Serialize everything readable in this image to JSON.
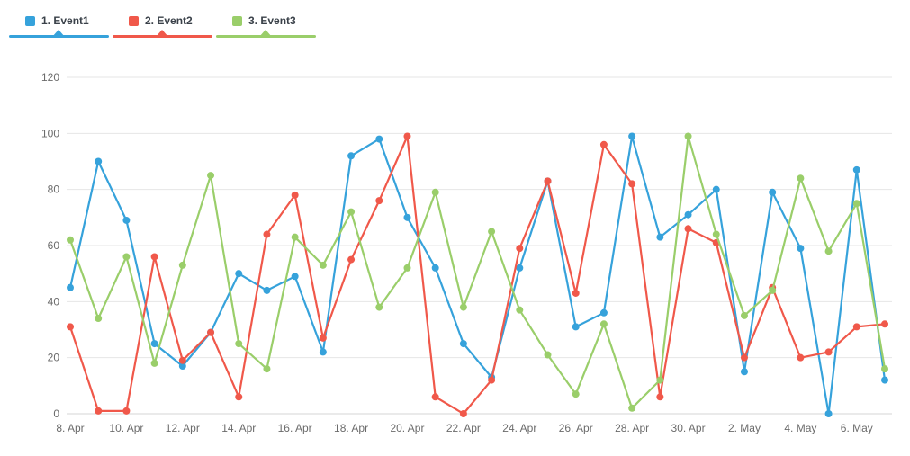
{
  "legend": {
    "items": [
      {
        "label": "1. Event1",
        "color": "#36a2db"
      },
      {
        "label": "2. Event2",
        "color": "#f0584a"
      },
      {
        "label": "3. Event3",
        "color": "#9ace6a"
      }
    ]
  },
  "chart_data": {
    "type": "line",
    "title": "",
    "xlabel": "",
    "ylabel": "",
    "x": [
      "8. Apr",
      "9. Apr",
      "10. Apr",
      "11. Apr",
      "12. Apr",
      "13. Apr",
      "14. Apr",
      "15. Apr",
      "16. Apr",
      "17. Apr",
      "18. Apr",
      "19. Apr",
      "20. Apr",
      "21. Apr",
      "22. Apr",
      "23. Apr",
      "24. Apr",
      "25. Apr",
      "26. Apr",
      "27. Apr",
      "28. Apr",
      "29. Apr",
      "30. Apr",
      "1. May",
      "2. May",
      "3. May",
      "4. May",
      "5. May",
      "6. May",
      "7. May"
    ],
    "x_tick_every": 2,
    "x_tick_labels": [
      "8. Apr",
      "10. Apr",
      "12. Apr",
      "14. Apr",
      "16. Apr",
      "18. Apr",
      "20. Apr",
      "22. Apr",
      "24. Apr",
      "26. Apr",
      "28. Apr",
      "30. Apr",
      "2. May",
      "4. May",
      "6. May"
    ],
    "y_tick_labels": [
      "0",
      "20",
      "40",
      "60",
      "80",
      "100",
      "120"
    ],
    "ylim": [
      0,
      120
    ],
    "ytick_step": 20,
    "grid": true,
    "legend_position": "top-left",
    "series": [
      {
        "name": "Event1",
        "color": "#36a2db",
        "values": [
          45,
          90,
          69,
          25,
          17,
          29,
          50,
          44,
          49,
          22,
          92,
          98,
          70,
          52,
          25,
          13,
          52,
          83,
          31,
          36,
          99,
          63,
          71,
          80,
          15,
          79,
          59,
          0,
          87,
          12
        ]
      },
      {
        "name": "Event2",
        "color": "#f0584a",
        "values": [
          31,
          1,
          1,
          56,
          19,
          29,
          6,
          64,
          78,
          27,
          55,
          76,
          99,
          6,
          0,
          12,
          59,
          83,
          43,
          96,
          82,
          6,
          66,
          61,
          20,
          45,
          20,
          22,
          31,
          32
        ]
      },
      {
        "name": "Event3",
        "color": "#9ace6a",
        "values": [
          62,
          34,
          56,
          18,
          53,
          85,
          25,
          16,
          63,
          53,
          72,
          38,
          52,
          79,
          38,
          65,
          37,
          21,
          7,
          32,
          2,
          12,
          99,
          64,
          35,
          44,
          84,
          58,
          75,
          16
        ]
      }
    ],
    "colors": {
      "series1": "#36a2db",
      "series2": "#f0584a",
      "series3": "#9ace6a",
      "gridline": "#e6e6e6",
      "axis_text": "#6b6b6b"
    }
  }
}
